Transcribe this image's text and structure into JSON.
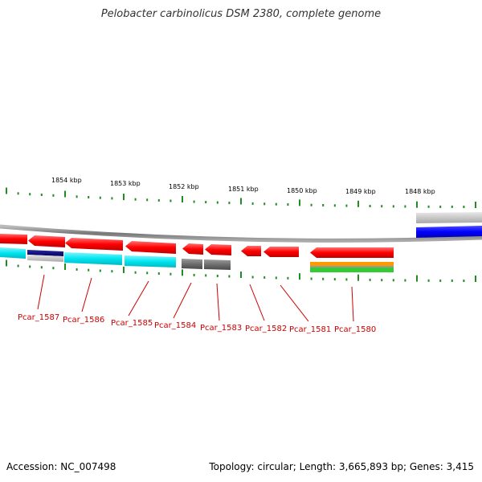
{
  "title": "Pelobacter carbinolicus DSM 2380, complete genome",
  "footer": {
    "accession": "Accession: NC_007498",
    "topology": "Topology: circular; Length: 3,665,893 bp; Genes: 3,415"
  },
  "scale": {
    "labels": [
      "1854 kbp",
      "1853 kbp",
      "1852 kbp",
      "1851 kbp",
      "1850 kbp",
      "1849 kbp",
      "1848 kbp"
    ],
    "tick_color": "#228b22"
  },
  "genes": [
    {
      "label": "Pcar_1587",
      "strand": "-"
    },
    {
      "label": "Pcar_1586",
      "strand": "-"
    },
    {
      "label": "Pcar_1585",
      "strand": "-"
    },
    {
      "label": "Pcar_1584",
      "strand": "-"
    },
    {
      "label": "Pcar_1583",
      "strand": "-"
    },
    {
      "label": "Pcar_1582",
      "strand": "-"
    },
    {
      "label": "Pcar_1581",
      "strand": "-"
    },
    {
      "label": "Pcar_1580",
      "strand": "-"
    }
  ],
  "colors": {
    "gene": "#ff0000",
    "backbone": "#888888",
    "cog_cyan": "#00e5ee",
    "cog_navy": "#000080",
    "cog_gray": "#6e6e6e",
    "cog_silver": "#c8c8c8",
    "cog_blue": "#0000ff",
    "cog_orange": "#ff9900",
    "cog_green": "#33cc33",
    "label": "#cc0000"
  }
}
